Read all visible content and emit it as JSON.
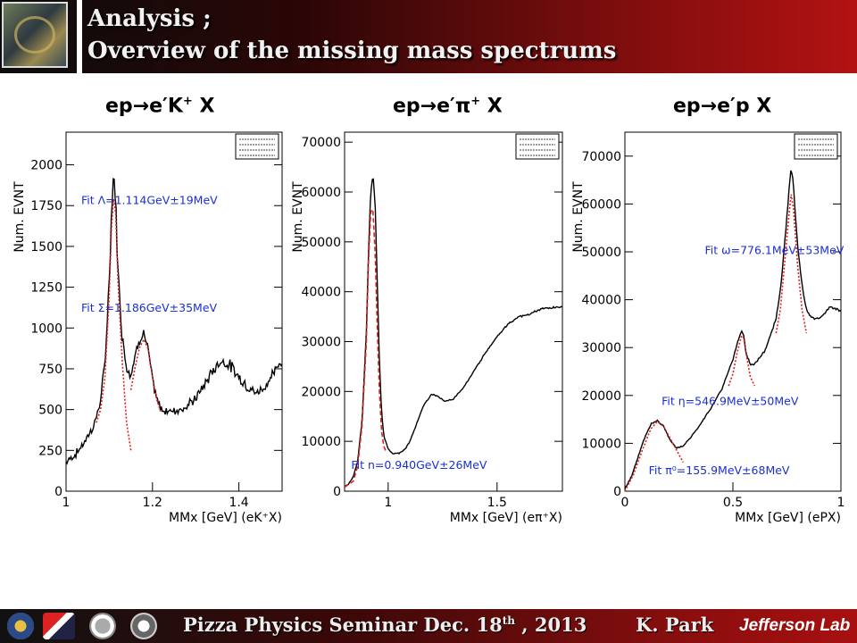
{
  "header": {
    "title_line1": "Analysis ;",
    "title_line2": "Overview of  the missing mass spectrums"
  },
  "footer": {
    "seminar": "Pizza Physics  Seminar  Dec. 18",
    "seminar_sup": "th",
    "seminar_tail": " , 2013",
    "author": "K. Park",
    "lab": "Jefferson Lab"
  },
  "colors": {
    "data": "#000000",
    "fit": "#e02020",
    "fit_label": "#1a2fd6",
    "header": "#8a0e0e"
  },
  "chart_data": [
    {
      "type": "line",
      "panel_title": {
        "pre": "ep",
        "arrow": "→",
        "post": "e′K",
        "sup": "+",
        "tail": " X"
      },
      "ylabel": "Num. EVNT",
      "xlabel": "MMx [GeV] (eK⁺X)",
      "xlim": [
        1.0,
        1.5
      ],
      "ylim": [
        0,
        2200
      ],
      "xticks": [
        1,
        1.2,
        1.4
      ],
      "xtick_labels": [
        "1",
        "1.2",
        "1.4"
      ],
      "yticks": [
        0,
        250,
        500,
        750,
        1000,
        1250,
        1500,
        1750,
        2000
      ],
      "ytick_labels": [
        "0",
        "250",
        "500",
        "750",
        "1000",
        "1250",
        "1500",
        "1750",
        "2000"
      ],
      "noise": 0.03,
      "annotations": [
        {
          "text": "Fit Λ=1.114GeV±19MeV",
          "x": 1.035,
          "y": 1760
        },
        {
          "text": "Fit Σ=1.186GeV±35MeV",
          "x": 1.035,
          "y": 1100
        }
      ],
      "series": [
        {
          "role": "data",
          "style": "noisy",
          "x": [
            1.0,
            1.02,
            1.04,
            1.06,
            1.07,
            1.08,
            1.09,
            1.1,
            1.105,
            1.11,
            1.115,
            1.12,
            1.13,
            1.14,
            1.15,
            1.16,
            1.17,
            1.18,
            1.19,
            1.2,
            1.21,
            1.22,
            1.24,
            1.26,
            1.28,
            1.3,
            1.32,
            1.34,
            1.36,
            1.38,
            1.4,
            1.42,
            1.44,
            1.46,
            1.48,
            1.5
          ],
          "y": [
            180,
            220,
            290,
            380,
            450,
            560,
            780,
            1300,
            1700,
            1950,
            1780,
            1350,
            950,
            760,
            720,
            830,
            940,
            970,
            860,
            680,
            560,
            500,
            490,
            500,
            520,
            570,
            650,
            740,
            800,
            770,
            700,
            640,
            600,
            640,
            720,
            800
          ]
        },
        {
          "role": "fit",
          "style": "dotted",
          "x": [
            1.07,
            1.08,
            1.09,
            1.1,
            1.105,
            1.11,
            1.115,
            1.12,
            1.13,
            1.14,
            1.15
          ],
          "y": [
            420,
            500,
            700,
            1200,
            1600,
            1790,
            1700,
            1300,
            800,
            420,
            250
          ]
        },
        {
          "role": "fit",
          "style": "dotted",
          "x": [
            1.15,
            1.16,
            1.17,
            1.18,
            1.19,
            1.2,
            1.21,
            1.22
          ],
          "y": [
            620,
            760,
            880,
            930,
            870,
            700,
            560,
            480
          ]
        }
      ]
    },
    {
      "type": "line",
      "panel_title": {
        "pre": "ep",
        "arrow": "→",
        "post": "e′π",
        "sup": "+",
        "tail": " X"
      },
      "ylabel": "Num. EVNT",
      "xlabel": "MMx [GeV] (eπ⁺X)",
      "xlim": [
        0.8,
        1.8
      ],
      "ylim": [
        0,
        72000
      ],
      "xticks": [
        1,
        1.5
      ],
      "xtick_labels": [
        "1",
        "1.5"
      ],
      "yticks": [
        0,
        10000,
        20000,
        30000,
        40000,
        50000,
        60000,
        70000
      ],
      "ytick_labels": [
        "0",
        "10000",
        "20000",
        "30000",
        "40000",
        "50000",
        "60000",
        "70000"
      ],
      "noise": 0.004,
      "annotations": [
        {
          "text": "Fit n=0.940GeV±26MeV",
          "x": 0.83,
          "y": 4500
        }
      ],
      "series": [
        {
          "role": "data",
          "style": "noisy",
          "x": [
            0.8,
            0.82,
            0.84,
            0.86,
            0.88,
            0.9,
            0.91,
            0.92,
            0.93,
            0.94,
            0.95,
            0.96,
            0.97,
            0.98,
            1.0,
            1.02,
            1.05,
            1.08,
            1.1,
            1.13,
            1.16,
            1.2,
            1.23,
            1.26,
            1.3,
            1.35,
            1.4,
            1.45,
            1.5,
            1.55,
            1.6,
            1.65,
            1.7,
            1.75,
            1.8
          ],
          "y": [
            1000,
            1500,
            3000,
            6000,
            14000,
            32000,
            48000,
            60000,
            63500,
            58000,
            42000,
            26000,
            16000,
            11000,
            8500,
            7500,
            7600,
            8500,
            10000,
            13500,
            17000,
            19500,
            19000,
            18000,
            18500,
            21000,
            24500,
            28000,
            31000,
            33500,
            35000,
            35500,
            36500,
            36800,
            37000
          ]
        },
        {
          "role": "fit",
          "style": "dashed",
          "x": [
            0.8,
            0.84,
            0.86,
            0.88,
            0.9,
            0.91,
            0.92,
            0.93,
            0.94,
            0.95,
            0.96,
            0.97,
            0.98,
            0.99
          ],
          "y": [
            800,
            2000,
            5000,
            13000,
            30000,
            46000,
            56000,
            56500,
            48000,
            33000,
            20000,
            12000,
            9000,
            8000
          ]
        }
      ]
    },
    {
      "type": "line",
      "panel_title": {
        "pre": "ep",
        "arrow": "→",
        "post": "e′p",
        "sup": "",
        "tail": " X"
      },
      "ylabel": "Num. EVNT",
      "xlabel": "MMx [GeV] (ePX)",
      "xlim": [
        0.0,
        1.0
      ],
      "ylim": [
        0,
        75000
      ],
      "xticks": [
        0,
        0.5,
        1
      ],
      "xtick_labels": [
        "0",
        "0.5",
        "1"
      ],
      "yticks": [
        0,
        10000,
        20000,
        30000,
        40000,
        50000,
        60000,
        70000
      ],
      "ytick_labels": [
        "0",
        "10000",
        "20000",
        "30000",
        "40000",
        "50000",
        "60000",
        "70000"
      ],
      "noise": 0.005,
      "annotations": [
        {
          "text": "Fit ω=776.1MeV±53MeV",
          "x": 0.37,
          "y": 49500
        },
        {
          "text": "Fit η=546.9MeV±50MeV",
          "x": 0.17,
          "y": 18000
        },
        {
          "text": "Fit π⁰=155.9MeV±68MeV",
          "x": 0.11,
          "y": 3500
        }
      ],
      "series": [
        {
          "role": "data",
          "style": "noisy",
          "x": [
            0.0,
            0.03,
            0.06,
            0.09,
            0.12,
            0.15,
            0.18,
            0.21,
            0.24,
            0.27,
            0.3,
            0.35,
            0.4,
            0.45,
            0.5,
            0.52,
            0.54,
            0.55,
            0.56,
            0.58,
            0.6,
            0.65,
            0.7,
            0.72,
            0.74,
            0.76,
            0.77,
            0.78,
            0.8,
            0.82,
            0.84,
            0.86,
            0.88,
            0.9,
            0.92,
            0.95,
            0.98,
            1.0
          ],
          "y": [
            500,
            3000,
            7000,
            11000,
            14000,
            14800,
            13500,
            10500,
            9000,
            9500,
            11000,
            14000,
            17500,
            21500,
            27500,
            31000,
            33500,
            32500,
            29000,
            26500,
            26500,
            29500,
            36000,
            42000,
            52000,
            63000,
            67500,
            64000,
            51000,
            43000,
            38000,
            36500,
            36000,
            36000,
            37000,
            38500,
            38000,
            37500
          ]
        },
        {
          "role": "fit",
          "style": "dotted",
          "x": [
            0.0,
            0.04,
            0.08,
            0.12,
            0.15,
            0.18,
            0.21,
            0.24,
            0.27
          ],
          "y": [
            0,
            3500,
            8500,
            13000,
            14500,
            13500,
            11000,
            8500,
            6000
          ]
        },
        {
          "role": "fit",
          "style": "dotted",
          "x": [
            0.48,
            0.5,
            0.52,
            0.54,
            0.55,
            0.56,
            0.58,
            0.6
          ],
          "y": [
            22000,
            24500,
            29000,
            32500,
            32000,
            29000,
            24000,
            22000
          ]
        },
        {
          "role": "fit",
          "style": "dotted",
          "x": [
            0.7,
            0.72,
            0.74,
            0.76,
            0.77,
            0.78,
            0.8,
            0.82,
            0.84
          ],
          "y": [
            33000,
            38000,
            48000,
            58000,
            62000,
            59000,
            47000,
            38000,
            33000
          ]
        }
      ]
    }
  ]
}
